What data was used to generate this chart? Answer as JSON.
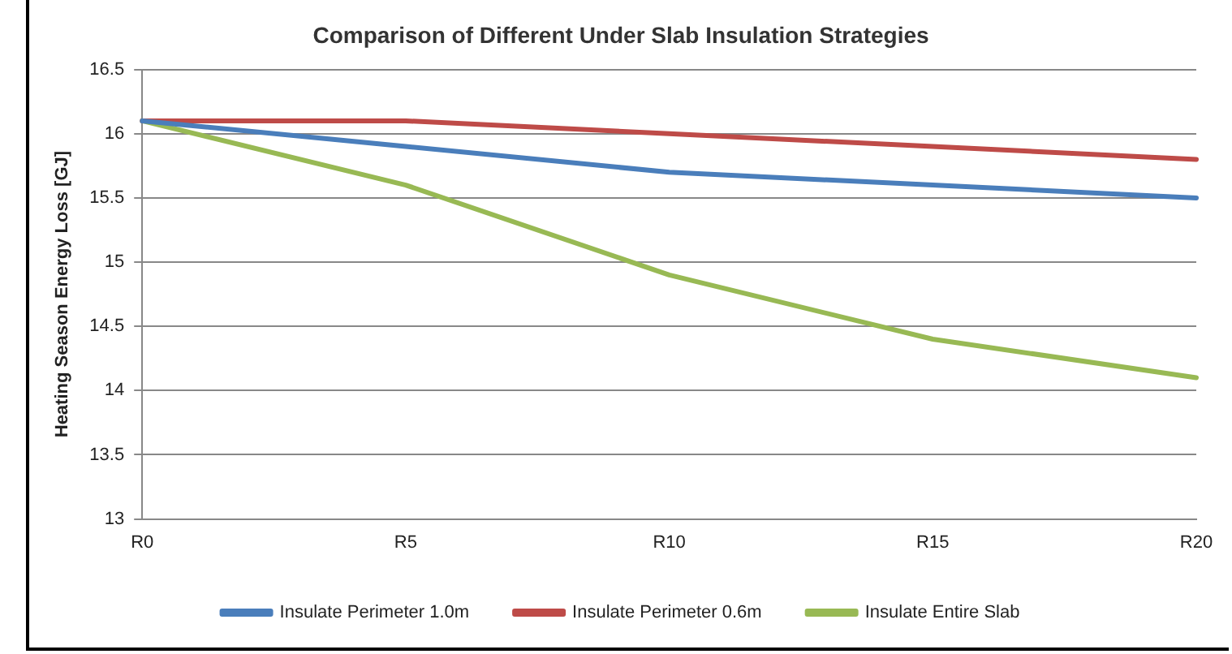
{
  "chart_data": {
    "type": "line",
    "title": "Comparison of Different Under Slab Insulation Strategies",
    "ylabel": "Heating Season Energy Loss [GJ]",
    "categories": [
      "R0",
      "R5",
      "R10",
      "R15",
      "R20"
    ],
    "series": [
      {
        "name": "Insulate Perimeter 1.0m",
        "color": "#4a7ebb",
        "values": [
          16.1,
          15.9,
          15.7,
          15.6,
          15.5
        ]
      },
      {
        "name": "Insulate Perimeter 0.6m",
        "color": "#be4b48",
        "values": [
          16.1,
          16.1,
          16.0,
          15.9,
          15.8
        ]
      },
      {
        "name": "Insulate Entire Slab",
        "color": "#98b954",
        "values": [
          16.1,
          15.6,
          14.9,
          14.4,
          14.1
        ]
      }
    ],
    "ylim": [
      13,
      16.5
    ],
    "yticks": [
      13,
      13.5,
      14,
      14.5,
      15,
      15.5,
      16,
      16.5
    ],
    "grid": "y",
    "legend": "bottom",
    "marker": "none",
    "line_style": "solid"
  }
}
